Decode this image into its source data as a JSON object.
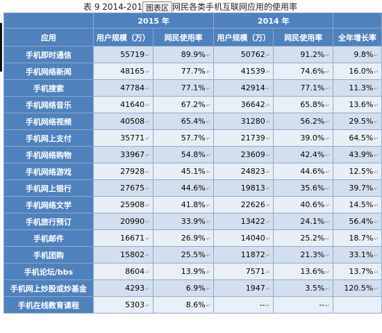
{
  "caption": {
    "left": "表 9    2014-2015",
    "badge": "图表区",
    "right": "网民各类手机互联网应用的使用率"
  },
  "header": {
    "year_2015": "2015 年",
    "year_2014": "2014 年",
    "app": "应用",
    "users_2015": "用户规模（万）",
    "rate_2015": "网民使用率",
    "users_2014": "用户规模（万）",
    "rate_2014": "网民使用率",
    "growth": "全年增长率"
  },
  "rows": [
    {
      "app": "手机即时通信",
      "u15": "55719",
      "r15": "89.9%",
      "u14": "50762",
      "r14": "91.2%",
      "g": "9.8%"
    },
    {
      "app": "手机网络新闻",
      "u15": "48165",
      "r15": "77.7%",
      "u14": "41539",
      "r14": "74.6%",
      "g": "16.0%"
    },
    {
      "app": "手机搜索",
      "u15": "47784",
      "r15": "77.1%",
      "u14": "42914",
      "r14": "77.1%",
      "g": "11.3%"
    },
    {
      "app": "手机网络音乐",
      "u15": "41640",
      "r15": "67.2%",
      "u14": "36642",
      "r14": "65.8%",
      "g": "13.6%"
    },
    {
      "app": "手机网络视频",
      "u15": "40508",
      "r15": "65.4%",
      "u14": "31280",
      "r14": "56.2%",
      "g": "29.5%"
    },
    {
      "app": "手机网上支付",
      "u15": "35771",
      "r15": "57.7%",
      "u14": "21739",
      "r14": "39.0%",
      "g": "64.5%"
    },
    {
      "app": "手机网络购物",
      "u15": "33967",
      "r15": "54.8%",
      "u14": "23609",
      "r14": "42.4%",
      "g": "43.9%"
    },
    {
      "app": "手机网络游戏",
      "u15": "27928",
      "r15": "45.1%",
      "u14": "24823",
      "r14": "44.6%",
      "g": "12.5%"
    },
    {
      "app": "手机网上银行",
      "u15": "27675",
      "r15": "44.6%",
      "u14": "19813",
      "r14": "35.6%",
      "g": "39.7%"
    },
    {
      "app": "手机网络文学",
      "u15": "25908",
      "r15": "41.8%",
      "u14": "22626",
      "r14": "40.6%",
      "g": "14.5%"
    },
    {
      "app": "手机旅行预订",
      "u15": "20990",
      "r15": "33.9%",
      "u14": "13422",
      "r14": "24.1%",
      "g": "56.4%"
    },
    {
      "app": "手机邮件",
      "u15": "16671",
      "r15": "26.9%",
      "u14": "14040",
      "r14": "25.2%",
      "g": "18.7%"
    },
    {
      "app": "手机团购",
      "u15": "15802",
      "r15": "25.5%",
      "u14": "11872",
      "r14": "21.3%",
      "g": "33.1%"
    },
    {
      "app": "手机论坛/bbs",
      "u15": "8604",
      "r15": "13.9%",
      "u14": "7571",
      "r14": "13.6%",
      "g": "13.7%"
    },
    {
      "app": "手机网上炒股或炒基金",
      "u15": "4293",
      "r15": "6.9%",
      "u14": "1947",
      "r14": "3.5%",
      "g": "120.5%"
    },
    {
      "app": "手机在线教育课程",
      "u15": "5303",
      "r15": "8.6%",
      "u14": "--",
      "r14": "--",
      "g": ""
    }
  ],
  "colors": {
    "header": "#4f81bd",
    "row_odd": "#d3dfee",
    "row_even": "#e9eff7",
    "border": "#8faacc"
  }
}
